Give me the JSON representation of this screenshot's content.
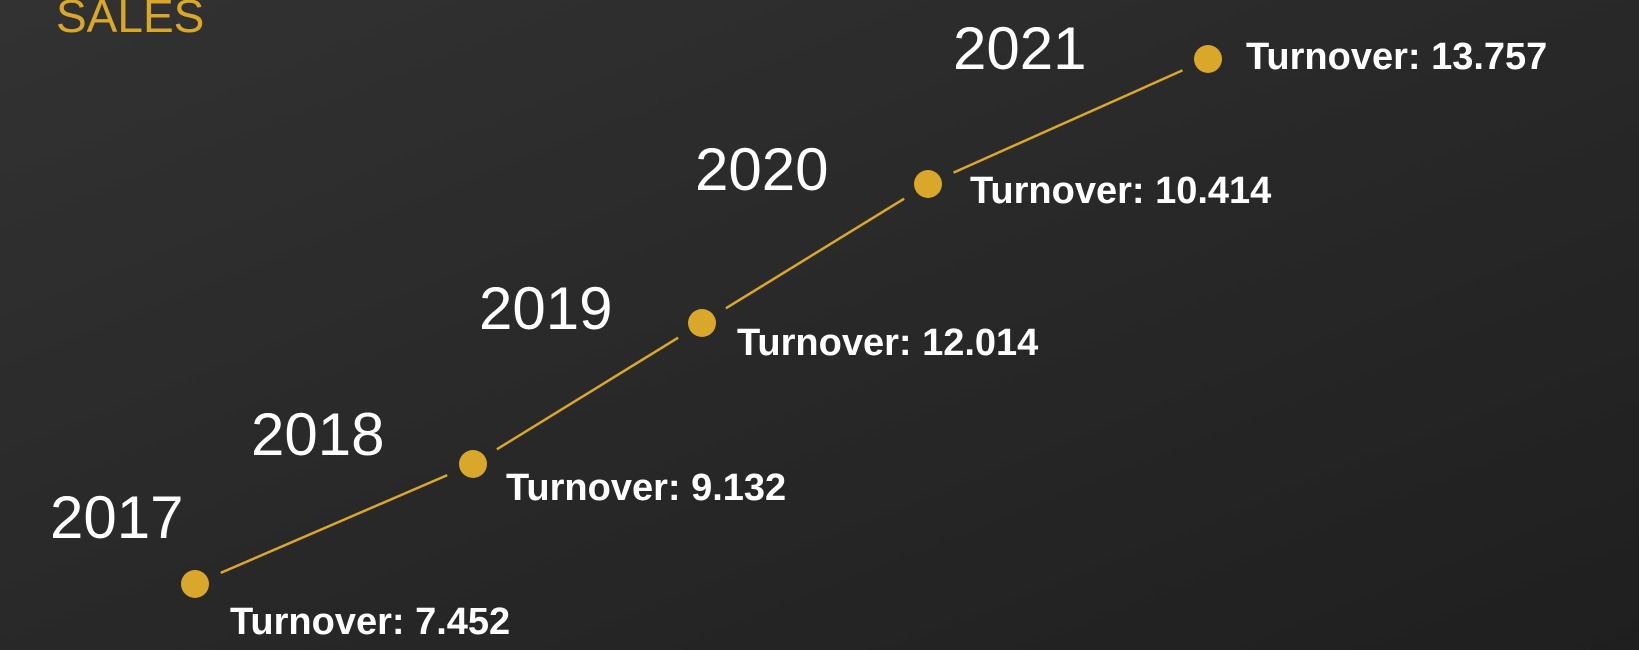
{
  "title": "SALES",
  "nodes": [
    {
      "year": "2017",
      "label": "Turnover: 7.452"
    },
    {
      "year": "2018",
      "label": "Turnover: 9.132"
    },
    {
      "year": "2019",
      "label": "Turnover: 12.014"
    },
    {
      "year": "2020",
      "label": "Turnover: 10.414"
    },
    {
      "year": "2021",
      "label": "Turnover: 13.757"
    }
  ]
}
